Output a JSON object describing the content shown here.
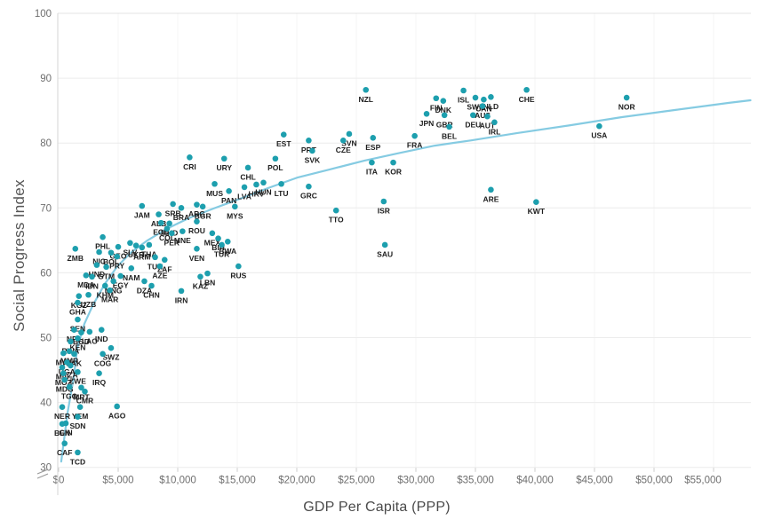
{
  "chart_data": {
    "type": "scatter",
    "title": "",
    "xlabel": "GDP Per Capita (PPP)",
    "ylabel": "Social Progress Index",
    "xlim": [
      0,
      58000
    ],
    "ylim": [
      30,
      100
    ],
    "grid": true,
    "legend": "none",
    "point_color": "#1d9fae",
    "trend_color": "#85cbe2",
    "grid_color": "#ececec",
    "axis_text_color": "#6f6f6f",
    "label_color": "#1d1d1d",
    "x_ticks": [
      {
        "value": 0,
        "label": "$0"
      },
      {
        "value": 5000,
        "label": "$5,000"
      },
      {
        "value": 10000,
        "label": "$10,000"
      },
      {
        "value": 15000,
        "label": "$15,000"
      },
      {
        "value": 20000,
        "label": "$20,000"
      },
      {
        "value": 25000,
        "label": "$25,000"
      },
      {
        "value": 30000,
        "label": "$30,000"
      },
      {
        "value": 35000,
        "label": "$35,000"
      },
      {
        "value": 40000,
        "label": "$40,000"
      },
      {
        "value": 45000,
        "label": "$45,000"
      },
      {
        "value": 50000,
        "label": "$50,000"
      },
      {
        "value": 55000,
        "label": "$55,000"
      }
    ],
    "y_ticks": [
      {
        "value": 30,
        "label": "30"
      },
      {
        "value": 40,
        "label": "40"
      },
      {
        "value": 50,
        "label": "50"
      },
      {
        "value": 60,
        "label": "60"
      },
      {
        "value": 70,
        "label": "70"
      },
      {
        "value": 80,
        "label": "80"
      },
      {
        "value": 90,
        "label": "90"
      },
      {
        "value": 100,
        "label": "100"
      }
    ],
    "points": [
      {
        "code": "NZL",
        "gdp": 25800,
        "spi": 88.2
      },
      {
        "code": "ISL",
        "gdp": 34000,
        "spi": 88.1
      },
      {
        "code": "CHE",
        "gdp": 39300,
        "spi": 88.2
      },
      {
        "code": "NOR",
        "gdp": 47700,
        "spi": 87.0
      },
      {
        "code": "SWE",
        "gdp": 35000,
        "spi": 87.0
      },
      {
        "code": "NLD",
        "gdp": 36300,
        "spi": 87.1
      },
      {
        "code": "CAN",
        "gdp": 35700,
        "spi": 86.7
      },
      {
        "code": "FIN",
        "gdp": 31700,
        "spi": 86.9
      },
      {
        "code": "DNK",
        "gdp": 32300,
        "spi": 86.5
      },
      {
        "code": "AUS",
        "gdp": 35600,
        "spi": 85.7
      },
      {
        "code": "JPN",
        "gdp": 30900,
        "spi": 84.5
      },
      {
        "code": "GBR",
        "gdp": 32400,
        "spi": 84.3
      },
      {
        "code": "DEU",
        "gdp": 34800,
        "spi": 84.3
      },
      {
        "code": "AUT",
        "gdp": 36000,
        "spi": 84.1
      },
      {
        "code": "IRL",
        "gdp": 36600,
        "spi": 83.2
      },
      {
        "code": "BEL",
        "gdp": 32800,
        "spi": 82.5
      },
      {
        "code": "USA",
        "gdp": 45400,
        "spi": 82.6
      },
      {
        "code": "FRA",
        "gdp": 29900,
        "spi": 81.1
      },
      {
        "code": "ESP",
        "gdp": 26400,
        "spi": 80.8
      },
      {
        "code": "SVN",
        "gdp": 24400,
        "spi": 81.4
      },
      {
        "code": "CZE",
        "gdp": 23900,
        "spi": 80.4
      },
      {
        "code": "EST",
        "gdp": 18900,
        "spi": 81.3
      },
      {
        "code": "PRT",
        "gdp": 21000,
        "spi": 80.4
      },
      {
        "code": "SVK",
        "gdp": 21300,
        "spi": 78.8
      },
      {
        "code": "ITA",
        "gdp": 26300,
        "spi": 77.0
      },
      {
        "code": "KOR",
        "gdp": 28100,
        "spi": 77.0
      },
      {
        "code": "POL",
        "gdp": 18200,
        "spi": 77.6
      },
      {
        "code": "CRI",
        "gdp": 11000,
        "spi": 77.8
      },
      {
        "code": "URY",
        "gdp": 13900,
        "spi": 77.6
      },
      {
        "code": "CHL",
        "gdp": 15900,
        "spi": 76.2
      },
      {
        "code": "GRC",
        "gdp": 21000,
        "spi": 73.3
      },
      {
        "code": "LTU",
        "gdp": 18700,
        "spi": 73.7
      },
      {
        "code": "HUN",
        "gdp": 17200,
        "spi": 73.9
      },
      {
        "code": "HRV",
        "gdp": 16600,
        "spi": 73.6
      },
      {
        "code": "LVA",
        "gdp": 15600,
        "spi": 73.2
      },
      {
        "code": "MUS",
        "gdp": 13100,
        "spi": 73.7
      },
      {
        "code": "PAN",
        "gdp": 14300,
        "spi": 72.6
      },
      {
        "code": "MYS",
        "gdp": 14800,
        "spi": 70.2
      },
      {
        "code": "ISR",
        "gdp": 27300,
        "spi": 71.0
      },
      {
        "code": "ARE",
        "gdp": 36300,
        "spi": 72.8
      },
      {
        "code": "KWT",
        "gdp": 40100,
        "spi": 70.9
      },
      {
        "code": "TTO",
        "gdp": 23300,
        "spi": 69.6
      },
      {
        "code": "SAU",
        "gdp": 27400,
        "spi": 64.3
      },
      {
        "code": "RUS",
        "gdp": 15100,
        "spi": 61.0
      },
      {
        "code": "JAM",
        "gdp": 7000,
        "spi": 70.3
      },
      {
        "code": "SRB",
        "gdp": 9600,
        "spi": 70.6
      },
      {
        "code": "BRA",
        "gdp": 10300,
        "spi": 70.0
      },
      {
        "code": "ARG",
        "gdp": 11600,
        "spi": 70.5
      },
      {
        "code": "BGR",
        "gdp": 12100,
        "spi": 70.2
      },
      {
        "code": "ALB",
        "gdp": 8400,
        "spi": 69.0
      },
      {
        "code": "ECU",
        "gdp": 8600,
        "spi": 67.7
      },
      {
        "code": "MKD",
        "gdp": 9300,
        "spi": 67.6
      },
      {
        "code": "COL",
        "gdp": 9100,
        "spi": 66.8
      },
      {
        "code": "PER",
        "gdp": 9500,
        "spi": 66.1
      },
      {
        "code": "MNE",
        "gdp": 10400,
        "spi": 66.4
      },
      {
        "code": "ROU",
        "gdp": 11600,
        "spi": 67.9
      },
      {
        "code": "MEX",
        "gdp": 12900,
        "spi": 66.1
      },
      {
        "code": "BIH",
        "gdp": 13400,
        "spi": 65.3
      },
      {
        "code": "BWA",
        "gdp": 14200,
        "spi": 64.8
      },
      {
        "code": "TUR",
        "gdp": 13700,
        "spi": 64.3
      },
      {
        "code": "VEN",
        "gdp": 11600,
        "spi": 63.7
      },
      {
        "code": "LBN",
        "gdp": 12500,
        "spi": 59.9
      },
      {
        "code": "KAZ",
        "gdp": 11900,
        "spi": 59.4
      },
      {
        "code": "IRN",
        "gdp": 10300,
        "spi": 57.2
      },
      {
        "code": "PHL",
        "gdp": 3700,
        "spi": 65.5
      },
      {
        "code": "ZMB",
        "gdp": 1400,
        "spi": 63.7
      },
      {
        "code": "GEO",
        "gdp": 5000,
        "spi": 64.0
      },
      {
        "code": "SLV",
        "gdp": 6000,
        "spi": 64.6
      },
      {
        "code": "UKR",
        "gdp": 6500,
        "spi": 64.2
      },
      {
        "code": "ARM",
        "gdp": 7000,
        "spi": 63.9
      },
      {
        "code": "THA",
        "gdp": 7600,
        "spi": 64.3
      },
      {
        "code": "NIC",
        "gdp": 3400,
        "spi": 63.2
      },
      {
        "code": "BOL",
        "gdp": 4400,
        "spi": 63.1
      },
      {
        "code": "PRY",
        "gdp": 4900,
        "spi": 62.5
      },
      {
        "code": "HND",
        "gdp": 3200,
        "spi": 61.2
      },
      {
        "code": "GTM",
        "gdp": 4000,
        "spi": 60.9
      },
      {
        "code": "NAM",
        "gdp": 6100,
        "spi": 60.7
      },
      {
        "code": "TUN",
        "gdp": 8100,
        "spi": 62.4
      },
      {
        "code": "ZAF",
        "gdp": 8900,
        "spi": 62.0
      },
      {
        "code": "AZE",
        "gdp": 8500,
        "spi": 61.0
      },
      {
        "code": "MDA",
        "gdp": 2300,
        "spi": 59.6
      },
      {
        "code": "IDN",
        "gdp": 2800,
        "spi": 59.4
      },
      {
        "code": "EGY",
        "gdp": 5200,
        "spi": 59.5
      },
      {
        "code": "MNG",
        "gdp": 4600,
        "spi": 58.7
      },
      {
        "code": "KHM",
        "gdp": 3900,
        "spi": 58.0
      },
      {
        "code": "MAR",
        "gdp": 4300,
        "spi": 57.3
      },
      {
        "code": "DZA",
        "gdp": 7200,
        "spi": 58.7
      },
      {
        "code": "CHN",
        "gdp": 7800,
        "spi": 58.0
      },
      {
        "code": "KGZ",
        "gdp": 1700,
        "spi": 56.4
      },
      {
        "code": "UZB",
        "gdp": 2500,
        "spi": 56.6
      },
      {
        "code": "GHA",
        "gdp": 1600,
        "spi": 55.4
      },
      {
        "code": "SEN",
        "gdp": 1600,
        "spi": 52.8
      },
      {
        "code": "NPL",
        "gdp": 1300,
        "spi": 51.2
      },
      {
        "code": "BGD",
        "gdp": 1900,
        "spi": 50.8
      },
      {
        "code": "LAO",
        "gdp": 2600,
        "spi": 50.9
      },
      {
        "code": "KEN",
        "gdp": 1600,
        "spi": 49.9
      },
      {
        "code": "RWA",
        "gdp": 1000,
        "spi": 49.4
      },
      {
        "code": "IND",
        "gdp": 3600,
        "spi": 51.2
      },
      {
        "code": "SWZ",
        "gdp": 4400,
        "spi": 48.4
      },
      {
        "code": "COG",
        "gdp": 3700,
        "spi": 47.5
      },
      {
        "code": "MWI",
        "gdp": 400,
        "spi": 47.6
      },
      {
        "code": "MMR",
        "gdp": 900,
        "spi": 47.9
      },
      {
        "code": "PAK",
        "gdp": 1300,
        "spi": 47.5
      },
      {
        "code": "UGA",
        "gdp": 700,
        "spi": 46.2
      },
      {
        "code": "TZA",
        "gdp": 1000,
        "spi": 45.7
      },
      {
        "code": "MLI",
        "gdp": 300,
        "spi": 45.4
      },
      {
        "code": "MOZ",
        "gdp": 400,
        "spi": 44.5
      },
      {
        "code": "ZWE",
        "gdp": 1600,
        "spi": 44.7
      },
      {
        "code": "MDG",
        "gdp": 500,
        "spi": 43.5
      },
      {
        "code": "IRQ",
        "gdp": 3400,
        "spi": 44.5
      },
      {
        "code": "TGO",
        "gdp": 900,
        "spi": 42.4
      },
      {
        "code": "MRT",
        "gdp": 1900,
        "spi": 42.3
      },
      {
        "code": "CMR",
        "gdp": 2200,
        "spi": 41.7
      },
      {
        "code": "NER",
        "gdp": 300,
        "spi": 39.3
      },
      {
        "code": "YEM",
        "gdp": 1800,
        "spi": 39.3
      },
      {
        "code": "AGO",
        "gdp": 4900,
        "spi": 39.4
      },
      {
        "code": "SDN",
        "gdp": 1600,
        "spi": 37.8
      },
      {
        "code": "BEN",
        "gdp": 300,
        "spi": 36.7
      },
      {
        "code": "GIN",
        "gdp": 600,
        "spi": 36.8
      },
      {
        "code": "CAF",
        "gdp": 500,
        "spi": 33.7
      },
      {
        "code": "TCD",
        "gdp": 1600,
        "spi": 32.3
      }
    ],
    "trend": [
      [
        220,
        30.9
      ],
      [
        750,
        38.4
      ],
      [
        1270,
        43.9
      ],
      [
        1570,
        48.4
      ],
      [
        2160,
        52.1
      ],
      [
        2840,
        54.9
      ],
      [
        3880,
        58.3
      ],
      [
        4930,
        61.0
      ],
      [
        6120,
        63.2
      ],
      [
        7460,
        65.0
      ],
      [
        9100,
        66.8
      ],
      [
        10900,
        68.4
      ],
      [
        13000,
        69.9
      ],
      [
        15200,
        71.4
      ],
      [
        17500,
        73.0
      ],
      [
        20100,
        74.7
      ],
      [
        22700,
        75.9
      ],
      [
        25700,
        77.3
      ],
      [
        28700,
        78.5
      ],
      [
        31600,
        79.6
      ],
      [
        34600,
        80.4
      ],
      [
        38400,
        81.5
      ],
      [
        42800,
        82.7
      ],
      [
        47300,
        84.0
      ],
      [
        51800,
        85.1
      ],
      [
        56300,
        86.2
      ],
      [
        58100,
        86.6
      ]
    ]
  }
}
